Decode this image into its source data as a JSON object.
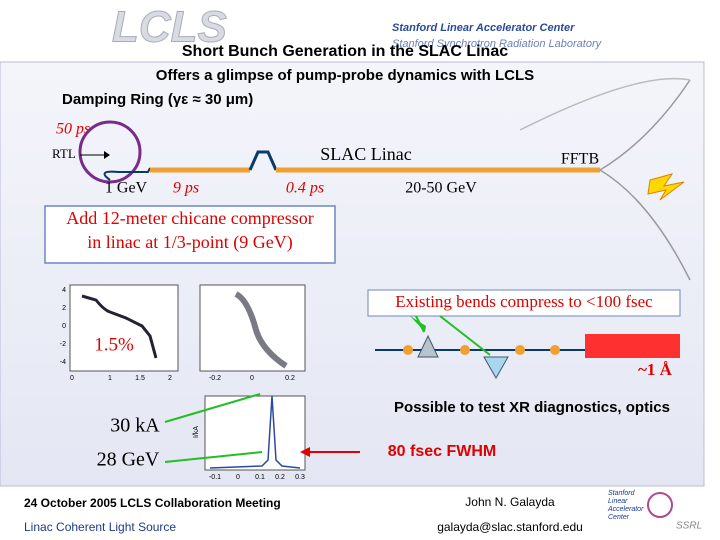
{
  "header": {
    "logo": "LCLS",
    "org1": "Stanford Linear Accelerator Center",
    "org2": "Stanford Synchrotron Radiation Laboratory"
  },
  "title": "Short Bunch Generation in the SLAC Linac",
  "subtitle": "Offers a glimpse of pump-probe dynamics with LCLS",
  "damping_ring": "Damping Ring (γε ≈ 30 μm)",
  "diagram": {
    "ring_length": "50 ps",
    "rtl": "RTL",
    "linac": "SLAC Linac",
    "fftb": "FFTB",
    "energy1": "1 GeV",
    "length1": "9 ps",
    "length2": "0.4 ps",
    "energy2": "20-50 GeV"
  },
  "chicane_note": [
    "Add 12-meter chicane compressor",
    "in linac at 1/3-point (9 GeV)"
  ],
  "bends_note": "Existing bends compress to <100 fsec",
  "spread": "1.5%",
  "wavelength": "~1 Å",
  "peak_current": "30 kA",
  "beam_energy": "28 GeV",
  "diagnostics_note": "Possible to test XR diagnostics, optics",
  "fwhm": "80 fsec FWHM",
  "plots": {
    "left_y_ticks": [
      "4",
      "2",
      "0",
      "-2",
      "-4"
    ],
    "left_x_ticks": [
      "0",
      "1",
      "1.5",
      "2"
    ],
    "mid_x_ticks": [
      "-0.2",
      "0",
      "0.2"
    ],
    "bottom_x_ticks": [
      "-0.1",
      "0",
      "0.1",
      "0.2",
      "0.3"
    ],
    "bottom_y_label": "I/kA"
  },
  "footer": {
    "meeting": "24 October 2005 LCLS Collaboration Meeting",
    "project": "Linac Coherent Light Source",
    "author": "John N. Galayda",
    "email": "galayda@slac.stanford.edu",
    "logo": [
      "Stanford",
      "Linear",
      "Accelerator",
      "Center"
    ],
    "ssrl": "SSRL"
  }
}
